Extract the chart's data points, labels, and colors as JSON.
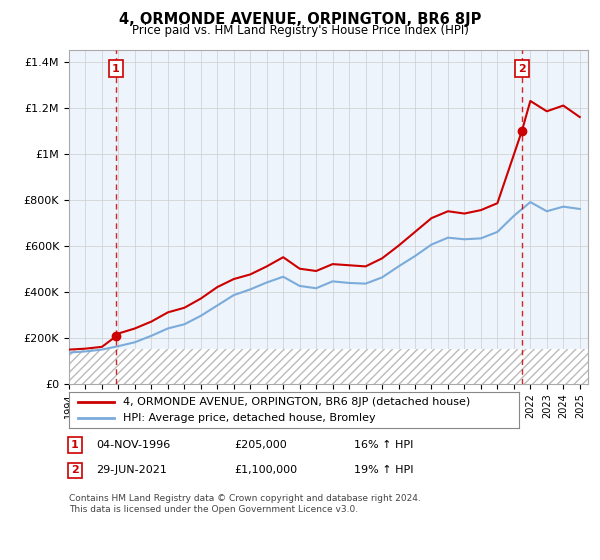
{
  "title": "4, ORMONDE AVENUE, ORPINGTON, BR6 8JP",
  "subtitle": "Price paid vs. HM Land Registry's House Price Index (HPI)",
  "sale1_year": 1996.84,
  "sale1_price": 205000,
  "sale2_year": 2021.49,
  "sale2_price": 1100000,
  "sale1_label": "1",
  "sale2_label": "2",
  "sale1_date": "04-NOV-1996",
  "sale2_date": "29-JUN-2021",
  "sale1_price_str": "£205,000",
  "sale2_price_str": "£1,100,000",
  "sale1_hpi": "16% ↑ HPI",
  "sale2_hpi": "19% ↑ HPI",
  "legend_line1": "4, ORMONDE AVENUE, ORPINGTON, BR6 8JP (detached house)",
  "legend_line2": "HPI: Average price, detached house, Bromley",
  "footnote1": "Contains HM Land Registry data © Crown copyright and database right 2024.",
  "footnote2": "This data is licensed under the Open Government Licence v3.0.",
  "red_color": "#cc0000",
  "blue_color": "#7aabdb",
  "hatch_color": "#cccccc",
  "xmin": 1994,
  "xmax": 2025.5,
  "ymin": 0,
  "ymax": 1450000,
  "hatch_ymax": 150000,
  "yticks": [
    0,
    200000,
    400000,
    600000,
    800000,
    1000000,
    1200000,
    1400000
  ],
  "ylabels": [
    "£0",
    "£200K",
    "£400K",
    "£600K",
    "£800K",
    "£1M",
    "£1.2M",
    "£1.4M"
  ],
  "hpi_years": [
    1994,
    1995,
    1996,
    1997,
    1998,
    1999,
    2000,
    2001,
    2002,
    2003,
    2004,
    2005,
    2006,
    2007,
    2008,
    2009,
    2010,
    2011,
    2012,
    2013,
    2014,
    2015,
    2016,
    2017,
    2018,
    2019,
    2020,
    2021,
    2022,
    2023,
    2024,
    2025
  ],
  "hpi_values": [
    135000,
    140000,
    148000,
    163000,
    180000,
    208000,
    240000,
    258000,
    295000,
    340000,
    385000,
    410000,
    440000,
    465000,
    425000,
    415000,
    445000,
    438000,
    435000,
    462000,
    510000,
    555000,
    605000,
    635000,
    628000,
    632000,
    660000,
    730000,
    790000,
    750000,
    770000,
    760000
  ],
  "red_years": [
    1994,
    1995,
    1996,
    1996.84,
    1997,
    1998,
    1999,
    2000,
    2001,
    2002,
    2003,
    2004,
    2005,
    2006,
    2007,
    2008,
    2009,
    2010,
    2011,
    2012,
    2013,
    2014,
    2015,
    2016,
    2017,
    2018,
    2019,
    2020,
    2021.49,
    2022,
    2023,
    2024,
    2025
  ],
  "red_values": [
    148000,
    152000,
    160000,
    205000,
    218000,
    240000,
    270000,
    310000,
    330000,
    370000,
    420000,
    455000,
    475000,
    510000,
    550000,
    500000,
    490000,
    520000,
    515000,
    510000,
    545000,
    600000,
    660000,
    720000,
    750000,
    740000,
    755000,
    785000,
    1100000,
    1230000,
    1185000,
    1210000,
    1160000
  ]
}
